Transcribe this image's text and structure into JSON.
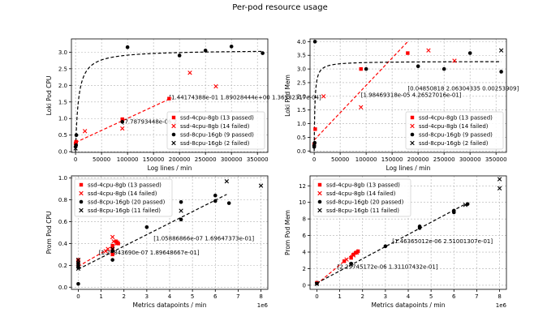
{
  "figure_title": "Per-pod resource usage",
  "chart_data": [
    {
      "type": "scatter",
      "xlabel": "Log lines / min",
      "ylabel": "Loki Pod CPU",
      "xlim": [
        -8000,
        370000
      ],
      "ylim": [
        -0.02,
        3.4
      ],
      "xticks": [
        0,
        50000,
        100000,
        150000,
        200000,
        250000,
        300000,
        350000
      ],
      "xtick_labels": [
        "0",
        "50000",
        "100000",
        "150000",
        "200000",
        "250000",
        "300000",
        "350000"
      ],
      "yticks": [
        0.0,
        0.5,
        1.0,
        1.5,
        2.0,
        2.5,
        3.0
      ],
      "ytick_labels": [
        "0.0",
        "0.5",
        "1.0",
        "1.5",
        "2.0",
        "2.5",
        "3.0"
      ],
      "x_offset_label": "",
      "grid": true,
      "legend_position": "lower-right",
      "series": [
        {
          "name": "ssd-4cpu-8gb (13 passed)",
          "marker": "square",
          "color": "#ff0000",
          "points": [
            [
              0,
              0.25
            ],
            [
              1000,
              0.3
            ],
            [
              90000,
              0.98
            ],
            [
              180000,
              1.6
            ]
          ]
        },
        {
          "name": "ssd-4cpu-8gb (14 failed)",
          "marker": "x",
          "color": "#ff0000",
          "points": [
            [
              18000,
              0.62
            ],
            [
              90000,
              0.7
            ],
            [
              220000,
              2.38
            ],
            [
              270000,
              1.97
            ]
          ]
        },
        {
          "name": "ssd-8cpu-16gb (9 passed)",
          "marker": "circle",
          "color": "#000000",
          "points": [
            [
              0,
              0.15
            ],
            [
              1000,
              0.2
            ],
            [
              1500,
              0.5
            ],
            [
              100000,
              3.15
            ],
            [
              200000,
              2.9
            ],
            [
              250000,
              3.05
            ],
            [
              300000,
              3.17
            ],
            [
              360000,
              2.97
            ],
            [
              90000,
              0.9
            ]
          ]
        },
        {
          "name": "ssd-8cpu-16gb (2 failed)",
          "marker": "x",
          "color": "#000000",
          "points": [
            [
              0,
              0.1
            ]
          ]
        }
      ],
      "fits": [
        {
          "kind": "linear",
          "color": "#ff0000",
          "x": [
            0,
            185000
          ],
          "y": [
            0.28,
            1.62
          ]
        },
        {
          "kind": "saturating",
          "color": "#000000",
          "a": 3.07,
          "k": 5500,
          "x": [
            0,
            360000
          ]
        }
      ],
      "annotations": [
        {
          "text": "[1.44174388e-01 1.89028444e+00 1.36532317e-04]",
          "x": 180000,
          "y": 1.58
        },
        {
          "text": "[7.78793448e-06 2.",
          "x": 90000,
          "y": 0.85
        }
      ]
    },
    {
      "type": "scatter",
      "xlabel": "Log lines / min",
      "ylabel": "Loki Pod Mem",
      "xlim": [
        -8000,
        370000
      ],
      "ylim": [
        -0.05,
        4.1
      ],
      "xticks": [
        0,
        50000,
        100000,
        150000,
        200000,
        250000,
        300000,
        350000
      ],
      "xtick_labels": [
        "0",
        "50000",
        "100000",
        "150000",
        "200000",
        "250000",
        "300000",
        "350000"
      ],
      "yticks": [
        0.0,
        0.5,
        1.0,
        1.5,
        2.0,
        2.5,
        3.0,
        3.5,
        4.0
      ],
      "ytick_labels": [
        "0.0",
        "0.5",
        "1.0",
        "1.5",
        "2.0",
        "2.5",
        "3.0",
        "3.5",
        "4.0"
      ],
      "x_offset_label": "",
      "grid": true,
      "legend_position": "lower-right",
      "series": [
        {
          "name": "ssd-4cpu-8gb (13 passed)",
          "marker": "square",
          "color": "#ff0000",
          "points": [
            [
              0,
              0.25
            ],
            [
              2000,
              0.8
            ],
            [
              90000,
              3.0
            ],
            [
              180000,
              3.58
            ]
          ]
        },
        {
          "name": "ssd-4cpu-8gb (14 failed)",
          "marker": "x",
          "color": "#ff0000",
          "points": [
            [
              18000,
              2.0
            ],
            [
              90000,
              1.6
            ],
            [
              220000,
              3.68
            ],
            [
              270000,
              3.3
            ]
          ]
        },
        {
          "name": "ssd-8cpu-16gb (9 passed)",
          "marker": "circle",
          "color": "#000000",
          "points": [
            [
              0,
              0.15
            ],
            [
              1000,
              0.3
            ],
            [
              1500,
              4.0
            ],
            [
              100000,
              3.0
            ],
            [
              200000,
              3.1
            ],
            [
              250000,
              3.0
            ],
            [
              300000,
              3.58
            ],
            [
              360000,
              2.9
            ],
            [
              0,
              0.2
            ]
          ]
        },
        {
          "name": "ssd-8cpu-16gb (2 failed)",
          "marker": "x",
          "color": "#000000",
          "points": [
            [
              360000,
              3.68
            ]
          ]
        }
      ],
      "fits": [
        {
          "kind": "linear",
          "color": "#ff0000",
          "x": [
            0,
            180000
          ],
          "y": [
            0.4,
            4.0
          ]
        },
        {
          "kind": "saturating",
          "color": "#000000",
          "a": 3.28,
          "k": 1400,
          "x": [
            0,
            360000
          ]
        }
      ],
      "annotations": [
        {
          "text": "[0.04850818 2.06304335 0.00253909]",
          "x": 180000,
          "y": 2.22
        },
        {
          "text": "[1.98469318e-05 4.26527016e-01]",
          "x": 90000,
          "y": 1.98
        }
      ]
    },
    {
      "type": "scatter",
      "xlabel": "Metrics datapoints / min",
      "ylabel": "Prom Pod CPU",
      "xlim": [
        -300000,
        8300000
      ],
      "ylim": [
        -0.02,
        1.02
      ],
      "xticks": [
        0,
        1000000,
        2000000,
        3000000,
        4000000,
        5000000,
        6000000,
        7000000,
        8000000
      ],
      "xtick_labels": [
        "0",
        "1",
        "2",
        "3",
        "4",
        "5",
        "6",
        "7",
        "8"
      ],
      "yticks": [
        0.0,
        0.2,
        0.4,
        0.6,
        0.8,
        1.0
      ],
      "ytick_labels": [
        "0.0",
        "0.2",
        "0.4",
        "0.6",
        "0.8",
        "1.0"
      ],
      "x_offset_label": "1e6",
      "grid": true,
      "legend_position": "upper-left",
      "series": [
        {
          "name": "ssd-4cpu-8gb (13 passed)",
          "marker": "square",
          "color": "#ff0000",
          "points": [
            [
              0,
              0.2
            ],
            [
              0,
              0.23
            ],
            [
              0,
              0.25
            ],
            [
              1500000,
              0.35
            ],
            [
              1500000,
              0.38
            ],
            [
              1650000,
              0.42
            ],
            [
              1750000,
              0.4
            ],
            [
              1500000,
              0.3
            ]
          ]
        },
        {
          "name": "ssd-4cpu-8gb (14 failed)",
          "marker": "x",
          "color": "#ff0000",
          "points": [
            [
              1200000,
              0.33
            ],
            [
              1300000,
              0.35
            ],
            [
              1500000,
              0.46
            ],
            [
              1550000,
              0.42
            ],
            [
              1700000,
              0.41
            ]
          ]
        },
        {
          "name": "ssd-8cpu-16gb (20 passed)",
          "marker": "circle",
          "color": "#000000",
          "points": [
            [
              0,
              0.03
            ],
            [
              0,
              0.18
            ],
            [
              0,
              0.2
            ],
            [
              0,
              0.22
            ],
            [
              1500000,
              0.25
            ],
            [
              1500000,
              0.33
            ],
            [
              3000000,
              0.55
            ],
            [
              4500000,
              0.62
            ],
            [
              4500000,
              0.78
            ],
            [
              6000000,
              0.79
            ],
            [
              6000000,
              0.84
            ],
            [
              6600000,
              0.77
            ]
          ]
        },
        {
          "name": "ssd-8cpu-16gb (11 failed)",
          "marker": "x",
          "color": "#000000",
          "points": [
            [
              1500000,
              0.35
            ],
            [
              4500000,
              0.7
            ],
            [
              6500000,
              0.97
            ],
            [
              8000000,
              0.93
            ],
            [
              0,
              0.25
            ],
            [
              0,
              0.17
            ]
          ]
        }
      ],
      "fits": [
        {
          "kind": "linear",
          "color": "#ff0000",
          "x": [
            0,
            1800000
          ],
          "y": [
            0.19,
            0.41
          ]
        },
        {
          "kind": "linear",
          "color": "#000000",
          "x": [
            0,
            6500000
          ],
          "y": [
            0.165,
            0.85
          ]
        }
      ],
      "annotations": [
        {
          "text": "[1.05886866e-07 1.69647373e-01]",
          "x": 3300000,
          "y": 0.43
        },
        {
          "text": "[1.26843690e-07 1.89648667e-01]",
          "x": 900000,
          "y": 0.3
        }
      ]
    },
    {
      "type": "scatter",
      "xlabel": "Metrics datapoints / min",
      "ylabel": "Prom Pod Mem",
      "xlim": [
        -300000,
        8300000
      ],
      "ylim": [
        -0.5,
        13.2
      ],
      "xticks": [
        0,
        1000000,
        2000000,
        3000000,
        4000000,
        5000000,
        6000000,
        7000000,
        8000000
      ],
      "xtick_labels": [
        "0",
        "1",
        "2",
        "3",
        "4",
        "5",
        "6",
        "7",
        "8"
      ],
      "yticks": [
        0,
        2,
        4,
        6,
        8,
        10,
        12
      ],
      "ytick_labels": [
        "0",
        "2",
        "4",
        "6",
        "8",
        "10",
        "12"
      ],
      "x_offset_label": "1e6",
      "grid": true,
      "legend_position": "upper-left",
      "series": [
        {
          "name": "ssd-4cpu-8gb (13 passed)",
          "marker": "square",
          "color": "#ff0000",
          "points": [
            [
              0,
              0.3
            ],
            [
              1200000,
              2.9
            ],
            [
              1500000,
              3.3
            ],
            [
              1600000,
              3.7
            ],
            [
              1700000,
              3.9
            ],
            [
              1800000,
              4.1
            ]
          ]
        },
        {
          "name": "ssd-4cpu-8gb (14 failed)",
          "marker": "x",
          "color": "#ff0000",
          "points": [
            [
              1300000,
              3.1
            ],
            [
              1600000,
              3.6
            ],
            [
              1750000,
              3.95
            ]
          ]
        },
        {
          "name": "ssd-8cpu-16gb (20 passed)",
          "marker": "circle",
          "color": "#000000",
          "points": [
            [
              0,
              0.2
            ],
            [
              1500000,
              2.6
            ],
            [
              3000000,
              4.7
            ],
            [
              4500000,
              6.9
            ],
            [
              4500000,
              7.1
            ],
            [
              6000000,
              8.8
            ],
            [
              6000000,
              9.0
            ],
            [
              6600000,
              9.8
            ]
          ]
        },
        {
          "name": "ssd-8cpu-16gb (11 failed)",
          "marker": "x",
          "color": "#000000",
          "points": [
            [
              1500000,
              2.5
            ],
            [
              6500000,
              9.7
            ],
            [
              8000000,
              12.8
            ],
            [
              8000000,
              11.7
            ],
            [
              0,
              0.15
            ]
          ]
        }
      ],
      "fits": [
        {
          "kind": "linear",
          "color": "#ff0000",
          "x": [
            0,
            1800000
          ],
          "y": [
            0.13,
            4.3
          ]
        },
        {
          "kind": "linear",
          "color": "#000000",
          "x": [
            0,
            6500000
          ],
          "y": [
            0.25,
            9.8
          ]
        }
      ],
      "annotations": [
        {
          "text": "[1.46365012e-06 2.51001307e-01]",
          "x": 3300000,
          "y": 5.1
        },
        {
          "text": "[2.29745172e-06 1.31107432e-01]",
          "x": 900000,
          "y": 2.0
        }
      ]
    }
  ]
}
